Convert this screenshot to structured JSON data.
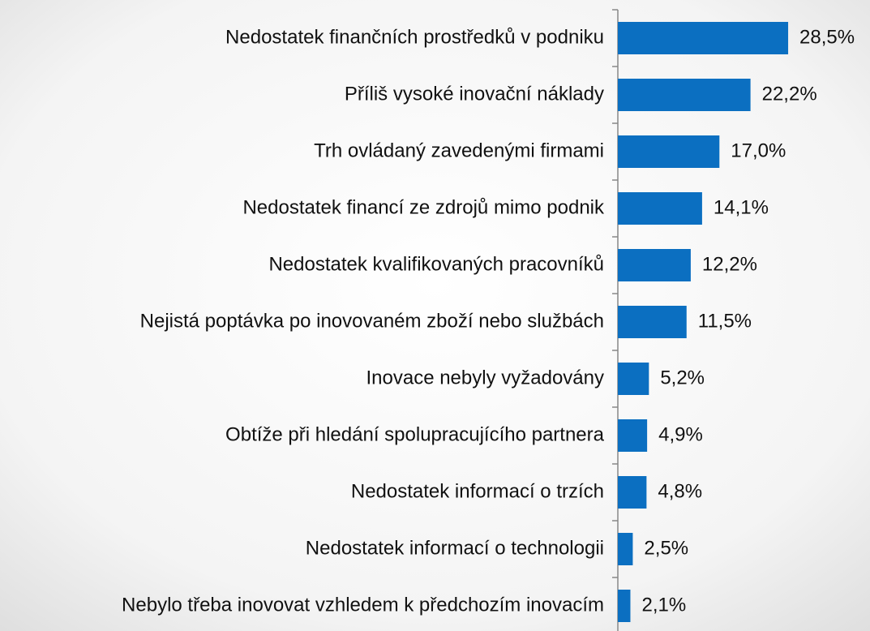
{
  "chart_data": {
    "type": "barh",
    "categories": [
      "Nedostatek finančních prostředků v podniku",
      "Příliš vysoké inovační náklady",
      "Trh ovládaný zavedenými firmami",
      "Nedostatek financí ze zdrojů mimo podnik",
      "Nedostatek kvalifikovaných pracovníků",
      "Nejistá poptávka po inovovaném zboží nebo službách",
      "Inovace nebyly vyžadovány",
      "Obtíže při hledání spolupracujícího partnera",
      "Nedostatek informací o trzích",
      "Nedostatek informací o technologii",
      "Nebylo třeba inovovat vzhledem k předchozím inovacím"
    ],
    "values": [
      28.5,
      22.2,
      17.0,
      14.1,
      12.2,
      11.5,
      5.2,
      4.9,
      4.8,
      2.5,
      2.1
    ],
    "value_labels": [
      "28,5%",
      "22,2%",
      "17,0%",
      "14,1%",
      "12,2%",
      "11,5%",
      "5,2%",
      "4,9%",
      "4,8%",
      "2,5%",
      "2,1%"
    ],
    "color": "#0b6fc1"
  }
}
